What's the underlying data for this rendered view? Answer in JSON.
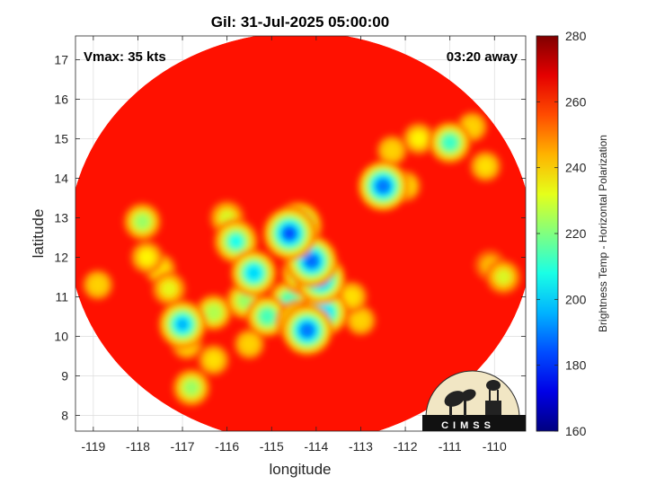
{
  "chart_data": {
    "type": "heatmap",
    "title": "Gil: 31-Jul-2025 05:00:00",
    "annotations": {
      "vmax": "Vmax: 35 kts",
      "time_away": "03:20 away"
    },
    "xlabel": "longitude",
    "ylabel": "latitude",
    "xlim": [
      -119.4,
      -109.3
    ],
    "ylim": [
      7.6,
      17.6
    ],
    "xticks": [
      -119,
      -118,
      -117,
      -116,
      -115,
      -114,
      -113,
      -112,
      -111,
      -110
    ],
    "yticks": [
      8,
      9,
      10,
      11,
      12,
      13,
      14,
      15,
      16,
      17
    ],
    "grid": true,
    "colorbar": {
      "label": "Brightness Temp - Horizontal Polarization",
      "range": [
        160,
        280
      ],
      "ticks": [
        160,
        180,
        200,
        220,
        240,
        260,
        280
      ],
      "colormap": "jet"
    },
    "swath": {
      "center_lon": -114.35,
      "center_lat": 12.5,
      "radius_deg": 5.2,
      "background_value": 263
    },
    "features": [
      {
        "lon": -114.6,
        "lat": 12.6,
        "value": 182
      },
      {
        "lon": -114.4,
        "lat": 12.8,
        "value": 195
      },
      {
        "lon": -114.1,
        "lat": 11.9,
        "value": 186
      },
      {
        "lon": -113.9,
        "lat": 11.45,
        "value": 190
      },
      {
        "lon": -114.3,
        "lat": 11.6,
        "value": 208
      },
      {
        "lon": -114.6,
        "lat": 10.9,
        "value": 212
      },
      {
        "lon": -113.8,
        "lat": 10.6,
        "value": 200
      },
      {
        "lon": -114.4,
        "lat": 10.35,
        "value": 205
      },
      {
        "lon": -114.2,
        "lat": 10.15,
        "value": 188
      },
      {
        "lon": -115.1,
        "lat": 10.5,
        "value": 212
      },
      {
        "lon": -115.6,
        "lat": 10.9,
        "value": 222
      },
      {
        "lon": -115.4,
        "lat": 11.6,
        "value": 200
      },
      {
        "lon": -115.8,
        "lat": 12.4,
        "value": 205
      },
      {
        "lon": -116.0,
        "lat": 13.0,
        "value": 230
      },
      {
        "lon": -116.3,
        "lat": 10.6,
        "value": 225
      },
      {
        "lon": -117.0,
        "lat": 10.3,
        "value": 195
      },
      {
        "lon": -117.3,
        "lat": 11.2,
        "value": 232
      },
      {
        "lon": -117.9,
        "lat": 12.9,
        "value": 222
      },
      {
        "lon": -117.8,
        "lat": 12.0,
        "value": 235
      },
      {
        "lon": -117.5,
        "lat": 11.7,
        "value": 238
      },
      {
        "lon": -116.8,
        "lat": 8.7,
        "value": 222
      },
      {
        "lon": -116.3,
        "lat": 9.4,
        "value": 238
      },
      {
        "lon": -118.9,
        "lat": 11.3,
        "value": 240
      },
      {
        "lon": -112.5,
        "lat": 13.8,
        "value": 188
      },
      {
        "lon": -112.0,
        "lat": 13.8,
        "value": 238
      },
      {
        "lon": -111.0,
        "lat": 14.9,
        "value": 210
      },
      {
        "lon": -111.7,
        "lat": 15.0,
        "value": 235
      },
      {
        "lon": -110.2,
        "lat": 14.3,
        "value": 238
      },
      {
        "lon": -112.3,
        "lat": 14.7,
        "value": 240
      },
      {
        "lon": -110.5,
        "lat": 15.3,
        "value": 240
      },
      {
        "lon": -109.8,
        "lat": 11.5,
        "value": 230
      },
      {
        "lon": -110.1,
        "lat": 11.8,
        "value": 242
      },
      {
        "lon": -113.2,
        "lat": 11.0,
        "value": 238
      },
      {
        "lon": -113.0,
        "lat": 10.4,
        "value": 240
      },
      {
        "lon": -115.5,
        "lat": 9.8,
        "value": 240
      },
      {
        "lon": -116.9,
        "lat": 9.8,
        "value": 238
      }
    ]
  },
  "logo": {
    "text": "CIMSS"
  }
}
